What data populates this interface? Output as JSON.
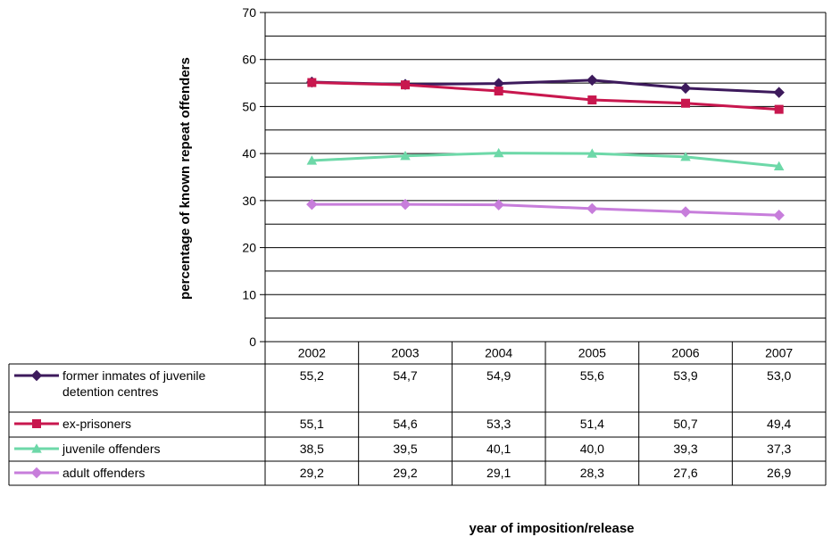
{
  "chart_data": {
    "type": "line",
    "ylabel": "percentage of known repeat offenders",
    "xlabel": "year of imposition/release",
    "ylim": [
      0,
      70
    ],
    "yticks": [
      0,
      10,
      20,
      30,
      40,
      50,
      60,
      70
    ],
    "grid": true,
    "legend_placement": "data table below plot",
    "categories": [
      "2002",
      "2003",
      "2004",
      "2005",
      "2006",
      "2007"
    ],
    "series": [
      {
        "name": "former inmates of juvenile detention centres",
        "name_lines": [
          "former inmates of juvenile",
          "detention centres"
        ],
        "color": "#3d1a5c",
        "marker": "diamond",
        "values": [
          55.2,
          54.7,
          54.9,
          55.6,
          53.9,
          53.0
        ],
        "labels": [
          "55,2",
          "54,7",
          "54,9",
          "55,6",
          "53,9",
          "53,0"
        ]
      },
      {
        "name": "ex-prisoners",
        "color": "#c8174e",
        "marker": "square",
        "values": [
          55.1,
          54.6,
          53.3,
          51.4,
          50.7,
          49.4
        ],
        "labels": [
          "55,1",
          "54,6",
          "53,3",
          "51,4",
          "50,7",
          "49,4"
        ]
      },
      {
        "name": "juvenile offenders",
        "color": "#6dd8a8",
        "marker": "triangle",
        "values": [
          38.5,
          39.5,
          40.1,
          40.0,
          39.3,
          37.3
        ],
        "labels": [
          "38,5",
          "39,5",
          "40,1",
          "40,0",
          "39,3",
          "37,3"
        ]
      },
      {
        "name": "adult offenders",
        "color": "#c77ddb",
        "marker": "diamond",
        "values": [
          29.2,
          29.2,
          29.1,
          28.3,
          27.6,
          26.9
        ],
        "labels": [
          "29,2",
          "29,2",
          "29,1",
          "28,3",
          "27,6",
          "26,9"
        ]
      }
    ]
  }
}
